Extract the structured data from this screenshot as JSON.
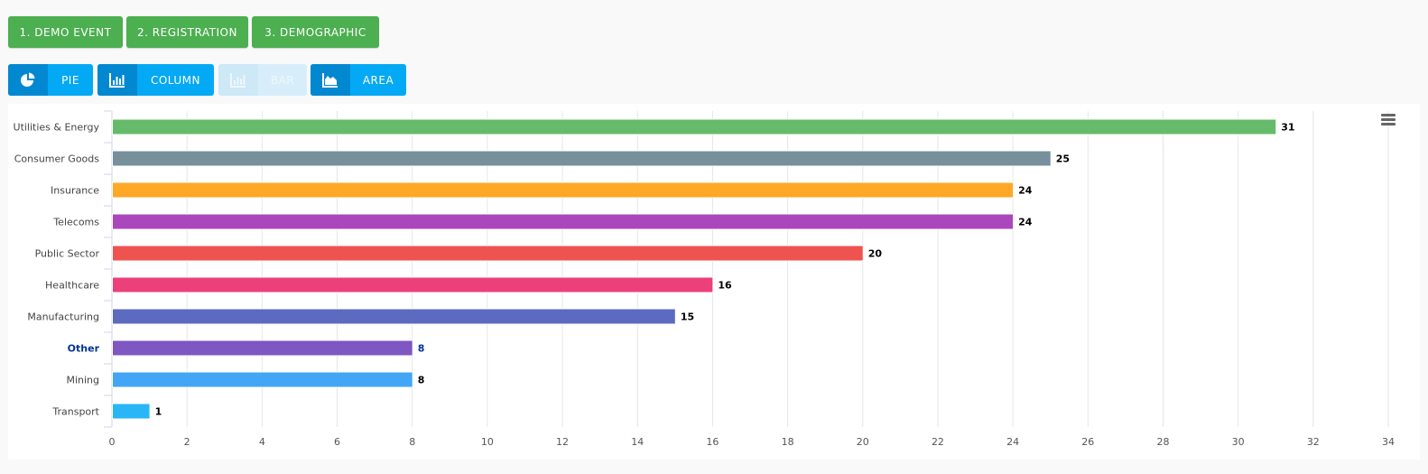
{
  "steps": [
    {
      "label": "1. DEMO EVENT"
    },
    {
      "label": "2. REGISTRATION"
    },
    {
      "label": "3. DEMOGRAPHIC"
    }
  ],
  "chart_types": [
    {
      "label": "PIE",
      "icon": "pie-chart-icon",
      "enabled": true
    },
    {
      "label": "COLUMN",
      "icon": "column-chart-icon",
      "enabled": true
    },
    {
      "label": "BAR",
      "icon": "bar-chart-icon",
      "enabled": false
    },
    {
      "label": "AREA",
      "icon": "area-chart-icon",
      "enabled": true
    }
  ],
  "colors": {
    "step_button": "#4caf50",
    "chart_type_button": "#03a9f4",
    "highlight_label": "#003399"
  },
  "chart_data": {
    "type": "bar",
    "orientation": "horizontal",
    "categories": [
      "Utilities & Energy",
      "Consumer Goods",
      "Insurance",
      "Telecoms",
      "Public Sector",
      "Healthcare",
      "Manufacturing",
      "Other",
      "Mining",
      "Transport"
    ],
    "values": [
      31,
      25,
      24,
      24,
      20,
      16,
      15,
      8,
      8,
      1
    ],
    "colors": [
      "#66bb6a",
      "#78909c",
      "#ffa726",
      "#ab47bc",
      "#ef5350",
      "#ec407a",
      "#5c6bc0",
      "#7e57c2",
      "#42a5f5",
      "#29b6f6"
    ],
    "highlighted_category": "Other",
    "xlim": [
      0,
      34
    ],
    "xticks": [
      0,
      2,
      4,
      6,
      8,
      10,
      12,
      14,
      16,
      18,
      20,
      22,
      24,
      26,
      28,
      30,
      32,
      34
    ],
    "grid": true,
    "data_labels": true,
    "legend": false,
    "title": "",
    "xlabel": "",
    "ylabel": ""
  }
}
